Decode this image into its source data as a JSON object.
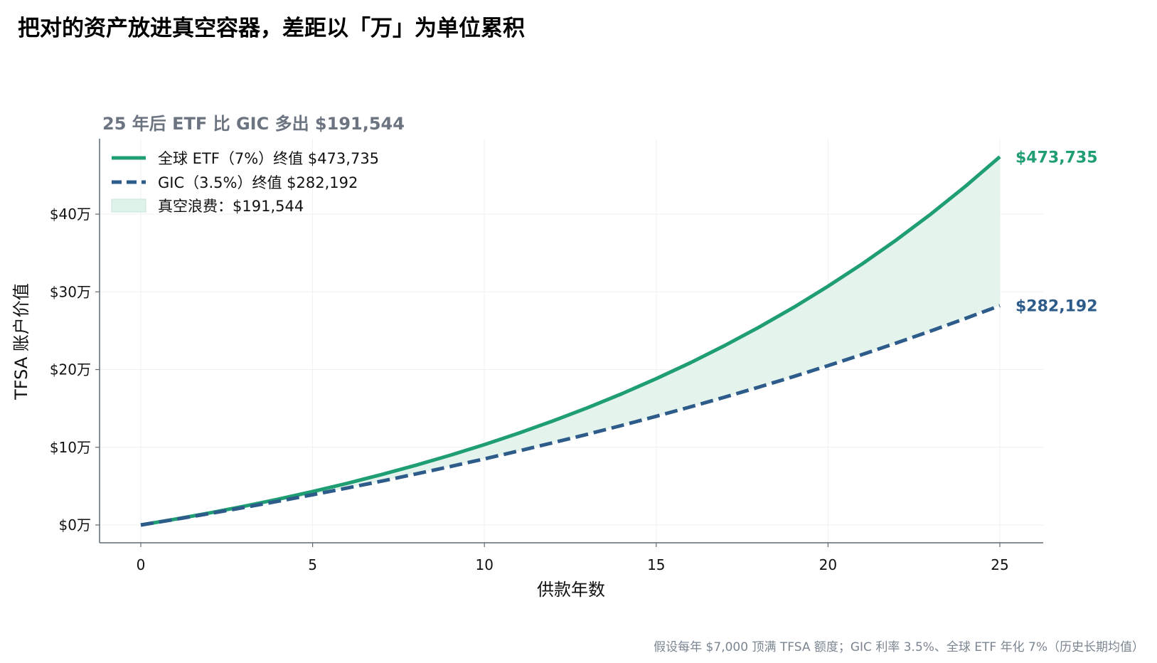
{
  "title": "把对的资产放进真空容器，差距以「万」为单位累积",
  "subtitle": "25 年后 ETF 比 GIC 多出 $191,544",
  "footnote": "假设每年 $7,000 顶满 TFSA 额度；GIC 利率 3.5%、全球 ETF 年化 7%（历史长期均值）",
  "colors": {
    "etf": "#1f9e74",
    "gic": "#2d5b8a",
    "gap_fill": "#dff2ea",
    "subtitle": "#6b7480",
    "grid": "#eef1f2",
    "axis": "#5e6a72"
  },
  "chart_data": {
    "type": "line",
    "title": "把对的资产放进真空容器，差距以「万」为单位累积",
    "subtitle": "25 年后 ETF 比 GIC 多出 $191,544",
    "xlabel": "供款年数",
    "ylabel": "TFSA 账户价值",
    "xlim": [
      -1.2,
      26.2
    ],
    "ylim": [
      -2.3,
      50.5
    ],
    "y_unit": "万",
    "x_ticks": [
      0,
      5,
      10,
      15,
      20,
      25
    ],
    "x_tick_labels": [
      "0",
      "5",
      "10",
      "15",
      "20",
      "25"
    ],
    "y_ticks": [
      0,
      10,
      20,
      30,
      40
    ],
    "y_tick_labels": [
      "$0万",
      "$10万",
      "$20万",
      "$30万",
      "$40万"
    ],
    "grid": true,
    "legend_position": "top-left",
    "annual_contribution": 7000,
    "series": [
      {
        "name": "全球 ETF（7%）终值 $473,735",
        "rate": 0.07,
        "style": "solid",
        "color": "#1f9e74",
        "end_label": "$473,735"
      },
      {
        "name": "GIC（3.5%）终值 $282,192",
        "rate": 0.035,
        "style": "dashed",
        "color": "#2d5b8a",
        "end_label": "$282,192"
      }
    ],
    "fill_between": {
      "name": "真空浪费：$191,544",
      "color": "#dff2ea"
    },
    "x": [
      0,
      1,
      2,
      3,
      4,
      5,
      6,
      7,
      8,
      9,
      10,
      11,
      12,
      13,
      14,
      15,
      16,
      17,
      18,
      19,
      20,
      21,
      22,
      23,
      24,
      25
    ],
    "y_etf": [
      0,
      0.749,
      1.55,
      2.407,
      3.324,
      4.306,
      5.356,
      6.48,
      7.683,
      8.97,
      10.347,
      11.821,
      13.398,
      15.086,
      16.892,
      18.824,
      20.892,
      23.104,
      25.471,
      28.004,
      30.714,
      33.614,
      36.717,
      40.037,
      43.59,
      47.374
    ],
    "y_gic": [
      0,
      0.725,
      1.475,
      2.252,
      3.056,
      3.888,
      4.749,
      5.64,
      6.563,
      7.517,
      8.505,
      9.528,
      10.586,
      11.681,
      12.815,
      13.988,
      15.202,
      16.459,
      17.76,
      19.106,
      20.499,
      21.941,
      23.434,
      24.979,
      26.578,
      28.219
    ]
  }
}
